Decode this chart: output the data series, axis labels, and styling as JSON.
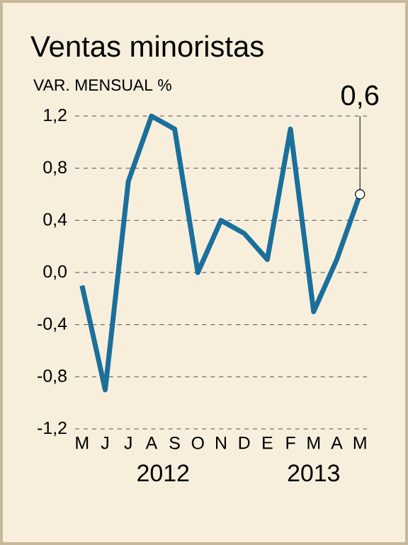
{
  "chart_data": {
    "type": "line",
    "title": "Ventas minoristas",
    "ylabel": "VAR. MENSUAL %",
    "categories": [
      "M",
      "J",
      "J",
      "A",
      "S",
      "O",
      "N",
      "D",
      "E",
      "F",
      "M",
      "A",
      "M"
    ],
    "values": [
      -0.1,
      -0.9,
      0.7,
      1.2,
      1.1,
      0.0,
      0.4,
      0.3,
      0.1,
      1.1,
      -0.3,
      0.1,
      0.6
    ],
    "value_labels": [
      null,
      null,
      null,
      null,
      null,
      null,
      null,
      null,
      null,
      null,
      null,
      null,
      "0,6"
    ],
    "color": "#1b6f9b",
    "marker": "none",
    "grid": "y",
    "ylim": [
      -1.2,
      1.2
    ],
    "yticks": [
      {
        "value": -1.2,
        "label": "-1,2"
      },
      {
        "value": -0.8,
        "label": "-0,8"
      },
      {
        "value": -0.4,
        "label": "-0,4"
      },
      {
        "value": 0.0,
        "label": "0,0"
      },
      {
        "value": 0.4,
        "label": "0,4"
      },
      {
        "value": 0.8,
        "label": "0,8"
      },
      {
        "value": 1.2,
        "label": "1,2"
      }
    ],
    "annotations": [
      "2012",
      "2013"
    ]
  }
}
